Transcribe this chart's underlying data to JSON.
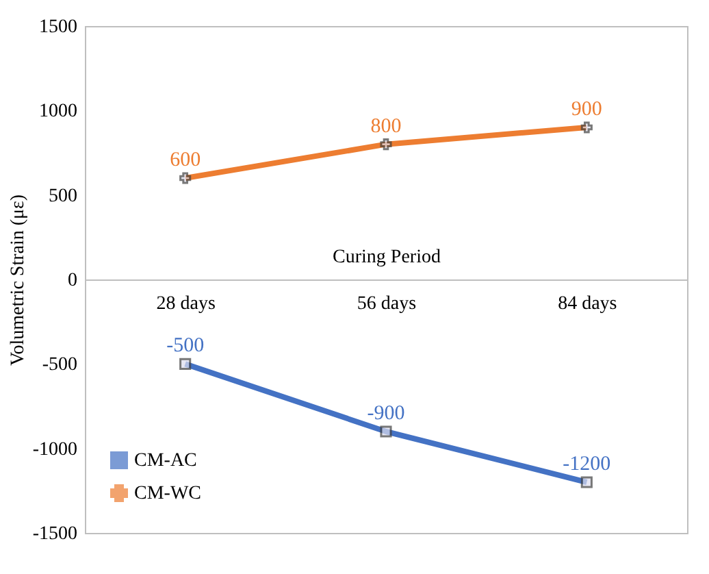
{
  "chart_data": {
    "type": "line",
    "xlabel": "Curing Period",
    "ylabel": "Volumetric Strain (με)",
    "categories": [
      "28 days",
      "56 days",
      "84 days"
    ],
    "series": [
      {
        "name": "CM-AC",
        "color": "#4472c4",
        "marker": "square",
        "values": [
          -500,
          -900,
          -1200
        ]
      },
      {
        "name": "CM-WC",
        "color": "#ed7d31",
        "marker": "cross",
        "values": [
          600,
          800,
          900
        ]
      }
    ],
    "ylim": [
      -1500,
      1500
    ],
    "yticks": [
      -1500,
      -1000,
      -500,
      0,
      500,
      1000,
      1500
    ],
    "data_labels": true,
    "legend": "bottom left",
    "grid": false
  }
}
